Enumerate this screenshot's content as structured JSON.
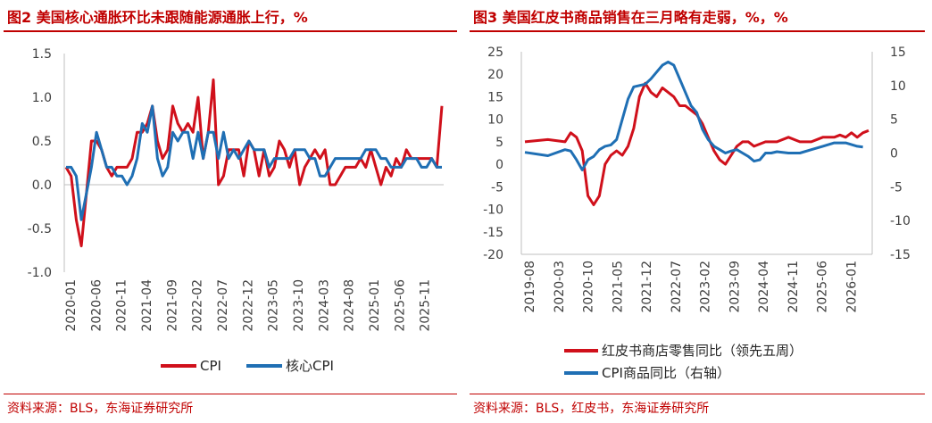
{
  "charts": [
    {
      "title": "图2  美国核心通胀环比未跟随能源通胀上行，%",
      "source": "资料来源：BLS，东海证券研究所",
      "chart_data": {
        "type": "line",
        "title": "美国核心通胀环比未跟随能源通胀上行，%",
        "ylim": [
          -1.0,
          1.5
        ],
        "yticks": [
          "1.5",
          "1.0",
          "0.5",
          "0.0",
          "-0.5",
          "-1.0"
        ],
        "x_ticks": [
          "2020-01",
          "2020-06",
          "2020-11",
          "2021-04",
          "2021-09",
          "2022-02",
          "2022-07",
          "2022-12",
          "2023-05",
          "2023-10",
          "2024-03",
          "2024-08",
          "2025-01",
          "2025-06",
          "2025-11"
        ],
        "series": [
          {
            "name": "CPI",
            "color": "#d0101b",
            "values": [
              0.2,
              0.1,
              -0.4,
              -0.7,
              -0.1,
              0.5,
              0.5,
              0.4,
              0.2,
              0.1,
              0.2,
              0.2,
              0.2,
              0.3,
              0.6,
              0.6,
              0.7,
              0.9,
              0.5,
              0.3,
              0.4,
              0.9,
              0.7,
              0.6,
              0.7,
              0.6,
              1.0,
              0.3,
              0.6,
              1.2,
              0.0,
              0.1,
              0.4,
              0.4,
              0.4,
              0.1,
              0.5,
              0.4,
              0.1,
              0.4,
              0.1,
              0.2,
              0.5,
              0.4,
              0.2,
              0.4,
              0.0,
              0.2,
              0.3,
              0.4,
              0.3,
              0.4,
              0.0,
              0.0,
              0.1,
              0.2,
              0.2,
              0.2,
              0.3,
              0.2,
              0.4,
              0.2,
              0.0,
              0.2,
              0.1,
              0.3,
              0.2,
              0.4,
              0.3,
              0.3,
              0.3,
              0.3,
              0.3,
              0.2,
              0.9
            ]
          },
          {
            "name": "核心CPI",
            "color": "#1f6fb4",
            "values": [
              0.2,
              0.2,
              0.1,
              -0.4,
              -0.1,
              0.2,
              0.6,
              0.4,
              0.2,
              0.2,
              0.1,
              0.1,
              0.0,
              0.1,
              0.3,
              0.7,
              0.6,
              0.9,
              0.3,
              0.1,
              0.2,
              0.6,
              0.5,
              0.6,
              0.6,
              0.3,
              0.6,
              0.3,
              0.6,
              0.6,
              0.3,
              0.6,
              0.3,
              0.4,
              0.3,
              0.4,
              0.5,
              0.4,
              0.4,
              0.4,
              0.2,
              0.3,
              0.3,
              0.3,
              0.3,
              0.4,
              0.4,
              0.4,
              0.3,
              0.3,
              0.1,
              0.1,
              0.2,
              0.3,
              0.3,
              0.3,
              0.3,
              0.3,
              0.3,
              0.4,
              0.4,
              0.4,
              0.3,
              0.3,
              0.2,
              0.2,
              0.2,
              0.3,
              0.3,
              0.3,
              0.2,
              0.2,
              0.3,
              0.2,
              0.2
            ]
          }
        ]
      }
    },
    {
      "title": "图3  美国红皮书商品销售在三月略有走弱，%，%",
      "source": "资料来源：BLS，红皮书，东海证券研究所",
      "chart_data": {
        "type": "line",
        "title": "美国红皮书商品销售在三月略有走弱，%，%",
        "ylim_left": [
          -20,
          25
        ],
        "ylim_right": [
          -15,
          15
        ],
        "yticks_left": [
          "25",
          "20",
          "15",
          "10",
          "5",
          "0",
          "-5",
          "-10",
          "-15",
          "-20"
        ],
        "yticks_right": [
          "15",
          "10",
          "5",
          "0",
          "-5",
          "-10",
          "-15"
        ],
        "x_ticks": [
          "2019-08",
          "2020-03",
          "2020-10",
          "2021-05",
          "2021-12",
          "2022-07",
          "2023-02",
          "2023-09",
          "2024-04",
          "2024-11",
          "2025-06",
          "2026-01"
        ],
        "series": [
          {
            "name": "红皮书商店零售同比（领先五周）",
            "axis": "left",
            "color": "#d0101b",
            "points": [
              [
                0,
                5
              ],
              [
                4,
                5.5
              ],
              [
                7,
                5
              ],
              [
                8,
                7
              ],
              [
                9,
                6
              ],
              [
                10,
                3
              ],
              [
                11,
                -7
              ],
              [
                12,
                -9
              ],
              [
                13,
                -7
              ],
              [
                14,
                0
              ],
              [
                15,
                2
              ],
              [
                16,
                3
              ],
              [
                17,
                2
              ],
              [
                18,
                4
              ],
              [
                19,
                8
              ],
              [
                20,
                15
              ],
              [
                21,
                18
              ],
              [
                22,
                16
              ],
              [
                23,
                15
              ],
              [
                24,
                17
              ],
              [
                25,
                16
              ],
              [
                26,
                15
              ],
              [
                27,
                13
              ],
              [
                28,
                13
              ],
              [
                29,
                12
              ],
              [
                30,
                11
              ],
              [
                31,
                9
              ],
              [
                32,
                6
              ],
              [
                33,
                3
              ],
              [
                34,
                1
              ],
              [
                35,
                0
              ],
              [
                36,
                2
              ],
              [
                37,
                4
              ],
              [
                38,
                5
              ],
              [
                39,
                5
              ],
              [
                40,
                4
              ],
              [
                42,
                5
              ],
              [
                44,
                5
              ],
              [
                46,
                6
              ],
              [
                48,
                5
              ],
              [
                50,
                5
              ],
              [
                52,
                6
              ],
              [
                54,
                6
              ],
              [
                55,
                6.5
              ],
              [
                56,
                6
              ],
              [
                57,
                7
              ],
              [
                58,
                6
              ],
              [
                59,
                7
              ],
              [
                60,
                7.5
              ]
            ]
          },
          {
            "name": "CPI商品同比（右轴）",
            "axis": "right",
            "color": "#1f6fb4",
            "points": [
              [
                0,
                0.1
              ],
              [
                4,
                -0.4
              ],
              [
                7,
                0.5
              ],
              [
                8,
                0.3
              ],
              [
                9,
                -1
              ],
              [
                10,
                -2.5
              ],
              [
                11,
                -1
              ],
              [
                12,
                -0.5
              ],
              [
                13,
                0.5
              ],
              [
                14,
                1
              ],
              [
                15,
                1.2
              ],
              [
                16,
                2
              ],
              [
                17,
                5
              ],
              [
                18,
                8
              ],
              [
                19,
                9.8
              ],
              [
                20,
                10
              ],
              [
                21,
                10.2
              ],
              [
                22,
                11
              ],
              [
                23,
                12
              ],
              [
                24,
                13
              ],
              [
                25,
                13.5
              ],
              [
                26,
                13
              ],
              [
                27,
                11
              ],
              [
                28,
                9
              ],
              [
                29,
                7
              ],
              [
                30,
                6
              ],
              [
                31,
                3.5
              ],
              [
                32,
                2
              ],
              [
                33,
                1
              ],
              [
                34,
                0.5
              ],
              [
                35,
                0
              ],
              [
                36,
                0.3
              ],
              [
                37,
                0.5
              ],
              [
                38,
                0
              ],
              [
                39,
                -0.5
              ],
              [
                40,
                -1.2
              ],
              [
                41,
                -1
              ],
              [
                42,
                0
              ],
              [
                43,
                0
              ],
              [
                44,
                0.2
              ],
              [
                46,
                0
              ],
              [
                48,
                0
              ],
              [
                50,
                0.5
              ],
              [
                52,
                1
              ],
              [
                54,
                1.5
              ],
              [
                56,
                1.5
              ],
              [
                58,
                1
              ],
              [
                59,
                0.9
              ]
            ]
          }
        ]
      }
    }
  ]
}
